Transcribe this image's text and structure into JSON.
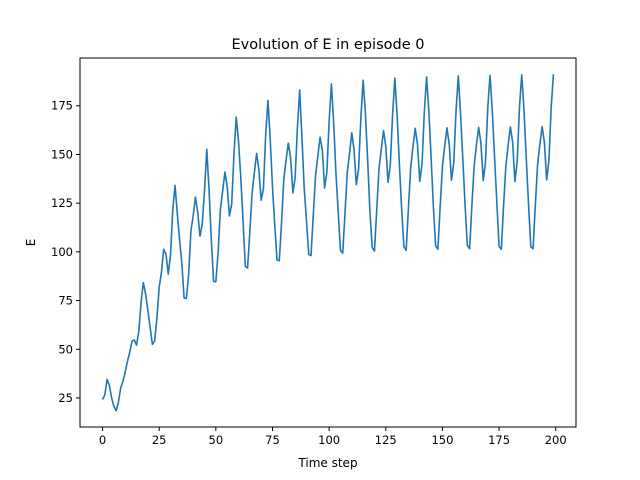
{
  "chart_data": {
    "type": "line",
    "title": "Evolution of E in episode 0",
    "xlabel": "Time step",
    "ylabel": "E",
    "xlim": [
      -9.95,
      208.95
    ],
    "ylim": [
      10.1,
      199.5
    ],
    "xticks": [
      0,
      25,
      50,
      75,
      100,
      125,
      150,
      175,
      200
    ],
    "yticks": [
      25,
      50,
      75,
      100,
      125,
      150,
      175
    ],
    "grid": false,
    "series": [
      {
        "color": "#1f77b4",
        "x": [
          0,
          1,
          2,
          3,
          4,
          5,
          6,
          7,
          8,
          9,
          10,
          11,
          12,
          13,
          14,
          15,
          16,
          17,
          18,
          19,
          20,
          21,
          22,
          23,
          24,
          25,
          26,
          27,
          28,
          29,
          30,
          31,
          32,
          33,
          34,
          35,
          36,
          37,
          38,
          39,
          40,
          41,
          42,
          43,
          44,
          45,
          46,
          47,
          48,
          49,
          50,
          51,
          52,
          53,
          54,
          55,
          56,
          57,
          58,
          59,
          60,
          61,
          62,
          63,
          64,
          65,
          66,
          67,
          68,
          69,
          70,
          71,
          72,
          73,
          74,
          75,
          76,
          77,
          78,
          79,
          80,
          81,
          82,
          83,
          84,
          85,
          86,
          87,
          88,
          89,
          90,
          91,
          92,
          93,
          94,
          95,
          96,
          97,
          98,
          99,
          100,
          101,
          102,
          103,
          104,
          105,
          106,
          107,
          108,
          109,
          110,
          111,
          112,
          113,
          114,
          115,
          116,
          117,
          118,
          119,
          120,
          121,
          122,
          123,
          124,
          125,
          126,
          127,
          128,
          129,
          130,
          131,
          132,
          133,
          134,
          135,
          136,
          137,
          138,
          139,
          140,
          141,
          142,
          143,
          144,
          145,
          146,
          147,
          148,
          149,
          150,
          151,
          152,
          153,
          154,
          155,
          156,
          157,
          158,
          159,
          160,
          161,
          162,
          163,
          164,
          165,
          166,
          167,
          168,
          169,
          170,
          171,
          172,
          173,
          174,
          175,
          176,
          177,
          178,
          179,
          180,
          181,
          182,
          183,
          184,
          185,
          186,
          187,
          188,
          189,
          190,
          191,
          192,
          193,
          194,
          195,
          196,
          197,
          198,
          199
        ],
        "values": [
          24.2,
          26.6,
          34.5,
          31.6,
          25.1,
          20.8,
          18.4,
          22.8,
          30.1,
          33.6,
          38.2,
          43.8,
          48.4,
          54.2,
          54.8,
          52.1,
          59.1,
          73.9,
          84.2,
          78.4,
          70.1,
          61.2,
          52.5,
          54.3,
          66.1,
          81.8,
          89.6,
          101.3,
          98.8,
          88.6,
          98.4,
          121.9,
          134.1,
          119.6,
          106.1,
          94.1,
          76.3,
          76.1,
          88.4,
          110.8,
          118.5,
          128.1,
          120.3,
          108.1,
          114.4,
          131.4,
          152.7,
          132.1,
          106.2,
          84.8,
          84.7,
          99.5,
          121.6,
          131.3,
          140.9,
          133.6,
          118.4,
          124.5,
          150.1,
          169.2,
          156.9,
          138.5,
          116.1,
          92.6,
          91.7,
          110.1,
          130.1,
          140.7,
          150.5,
          142.1,
          126.5,
          132.4,
          160.4,
          177.7,
          157.8,
          133.4,
          113.8,
          95.8,
          95.5,
          115.1,
          137.3,
          147.3,
          155.8,
          148.1,
          130.2,
          137.9,
          163.8,
          183.1,
          158.6,
          132.6,
          116.2,
          98.7,
          98.1,
          118.9,
          139.1,
          148.9,
          158.8,
          152.1,
          132.8,
          140.7,
          167.1,
          186.2,
          166.4,
          140.5,
          120.6,
          100.8,
          99.3,
          119.8,
          140.8,
          150.4,
          161.1,
          152.3,
          134.5,
          142.5,
          168.8,
          188.1,
          171.1,
          147.3,
          120.7,
          102.3,
          100.4,
          121.3,
          142.6,
          152.4,
          162.2,
          154.2,
          135.7,
          144.6,
          170.4,
          189.2,
          170.1,
          145.1,
          122.1,
          102.6,
          100.8,
          122.6,
          143.3,
          154.1,
          163.4,
          155.1,
          136.2,
          145.1,
          171.6,
          189.8,
          172.4,
          148.4,
          123.3,
          103.1,
          101.4,
          123.1,
          143.8,
          154.1,
          163.7,
          155.3,
          136.8,
          145.6,
          172.3,
          190.3,
          171.1,
          147.6,
          123.9,
          103.3,
          101.6,
          123.7,
          144.1,
          154.8,
          163.9,
          155.6,
          136.6,
          145.9,
          173.8,
          190.6,
          172.6,
          148.9,
          125.6,
          102.9,
          101.3,
          124.1,
          144.1,
          154.7,
          164.1,
          156.1,
          136.1,
          146.6,
          174.1,
          190.9,
          172.8,
          148.1,
          124.4,
          102.6,
          101.6,
          123.9,
          144.9,
          155.1,
          164.3,
          156.2,
          136.9,
          146.9,
          174.3,
          191.2
        ]
      }
    ]
  }
}
